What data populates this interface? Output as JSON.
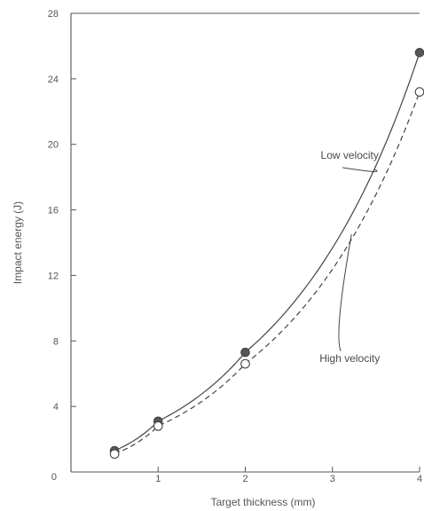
{
  "chart_data": {
    "type": "line",
    "xlabel": "Target thickness (mm)",
    "ylabel": "Impact energy (J)",
    "xlim": [
      0,
      4
    ],
    "ylim": [
      0,
      28
    ],
    "x_ticks": [
      0,
      1,
      2,
      3,
      4
    ],
    "y_ticks": [
      0,
      4,
      8,
      12,
      16,
      20,
      24,
      28
    ],
    "grid": false,
    "legend": "none",
    "series": [
      {
        "key": "low",
        "marker": "filled-circle",
        "line_style": "solid",
        "x": [
          0.5,
          1.0,
          2.0,
          4.0
        ],
        "y": [
          1.3,
          3.1,
          7.3,
          25.6
        ]
      },
      {
        "key": "high",
        "marker": "open-circle",
        "line_style": "dashed",
        "x": [
          0.5,
          1.0,
          2.0,
          4.0
        ],
        "y": [
          1.1,
          2.8,
          6.6,
          23.2
        ]
      }
    ],
    "annotations": [
      {
        "series": "low",
        "text": "Low velocity",
        "x": 3.3,
        "y": 18.8
      },
      {
        "series": "high",
        "text": "High velocity",
        "x": 3.3,
        "y": 6.4
      }
    ],
    "colors": {
      "axis": "#555555",
      "line": "#444444",
      "text": "#4b4b4b"
    }
  }
}
